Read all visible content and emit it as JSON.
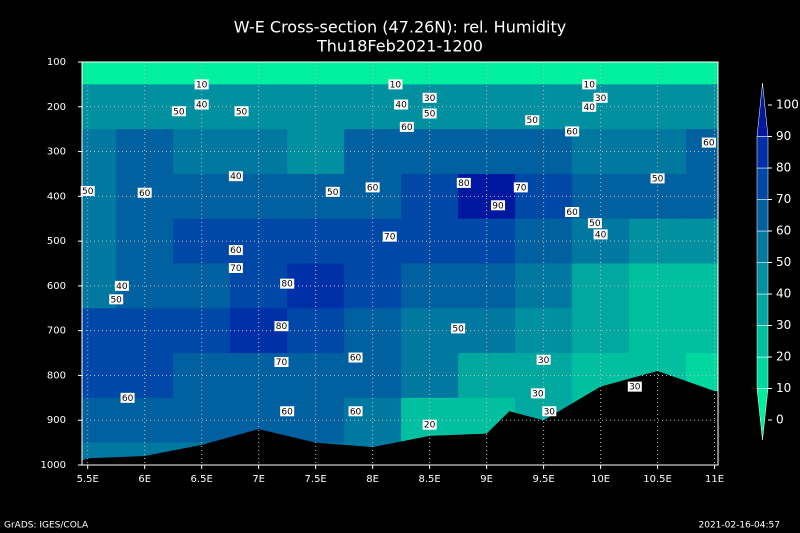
{
  "chart_data": {
    "type": "contour",
    "title": "W-E Cross-section (47.26N): rel. Humidity",
    "subtitle": "Thu18Feb2021-1200",
    "footer_left": "GrADS: IGES/COLA",
    "footer_right": "2021-02-16-04:57",
    "x": [
      5.5,
      6,
      6.5,
      7,
      7.5,
      8,
      8.5,
      9,
      9.5,
      10,
      10.5,
      11
    ],
    "levels_p": [
      100,
      200,
      300,
      400,
      500,
      600,
      700,
      800,
      900,
      1000
    ],
    "field": [
      [
        5,
        5,
        5,
        5,
        5,
        5,
        5,
        5,
        5,
        5,
        5,
        5
      ],
      [
        45,
        45,
        40,
        45,
        45,
        40,
        45,
        45,
        45,
        40,
        40,
        40
      ],
      [
        55,
        60,
        55,
        50,
        45,
        60,
        60,
        65,
        65,
        55,
        55,
        60
      ],
      [
        55,
        60,
        60,
        60,
        60,
        65,
        75,
        90,
        75,
        60,
        60,
        65
      ],
      [
        55,
        65,
        70,
        70,
        70,
        70,
        70,
        75,
        65,
        50,
        40,
        40
      ],
      [
        50,
        60,
        65,
        75,
        80,
        75,
        65,
        60,
        50,
        35,
        25,
        20
      ],
      [
        70,
        75,
        70,
        80,
        70,
        65,
        55,
        50,
        40,
        30,
        20,
        20
      ],
      [
        70,
        70,
        65,
        65,
        65,
        60,
        50,
        35,
        30,
        25,
        20,
        15
      ],
      [
        60,
        60,
        60,
        60,
        60,
        50,
        20,
        25,
        30,
        25,
        20,
        15
      ],
      [
        55,
        55,
        55,
        55,
        55,
        50,
        20,
        25,
        30,
        25,
        20,
        15
      ]
    ],
    "terrain": {
      "x": [
        5.45,
        5.5,
        6,
        6.5,
        7,
        7.5,
        8,
        8.5,
        9,
        9.2,
        9.5,
        10,
        10.5,
        11,
        11.03
      ],
      "p": [
        990,
        985,
        980,
        955,
        920,
        950,
        960,
        935,
        930,
        880,
        900,
        825,
        790,
        835,
        835
      ]
    },
    "xlim": [
      5.45,
      11.03
    ],
    "ylim": [
      1000,
      100
    ],
    "xticks": [
      {
        "value": 5.5,
        "label": "5.5E"
      },
      {
        "value": 6,
        "label": "6E"
      },
      {
        "value": 6.5,
        "label": "6.5E"
      },
      {
        "value": 7,
        "label": "7E"
      },
      {
        "value": 7.5,
        "label": "7.5E"
      },
      {
        "value": 8,
        "label": "8E"
      },
      {
        "value": 8.5,
        "label": "8.5E"
      },
      {
        "value": 9,
        "label": "9E"
      },
      {
        "value": 9.5,
        "label": "9.5E"
      },
      {
        "value": 10,
        "label": "10E"
      },
      {
        "value": 10.5,
        "label": "10.5E"
      },
      {
        "value": 11,
        "label": "11E"
      }
    ],
    "yticks": [
      100,
      200,
      300,
      400,
      500,
      600,
      700,
      800,
      900,
      1000
    ],
    "grid": true,
    "colorbar": {
      "levels": [
        0,
        10,
        20,
        30,
        40,
        50,
        60,
        70,
        80,
        90,
        100
      ],
      "colors": [
        "#00f0a0",
        "#00d8a0",
        "#00c0a0",
        "#00a8a0",
        "#0090a0",
        "#0078a0",
        "#0060a0",
        "#0048a8",
        "#0030a8",
        "#0018a0"
      ]
    },
    "contour_labels": [
      {
        "x": 6.0,
        "p": 392,
        "value": 60
      },
      {
        "x": 5.5,
        "p": 388,
        "value": 50
      },
      {
        "x": 6.8,
        "p": 355,
        "value": 40
      },
      {
        "x": 6.8,
        "p": 520,
        "value": 60
      },
      {
        "x": 6.8,
        "p": 560,
        "value": 70
      },
      {
        "x": 7.25,
        "p": 595,
        "value": 80
      },
      {
        "x": 7.2,
        "p": 690,
        "value": 80
      },
      {
        "x": 7.2,
        "p": 770,
        "value": 70
      },
      {
        "x": 7.25,
        "p": 880,
        "value": 60
      },
      {
        "x": 5.85,
        "p": 850,
        "value": 60
      },
      {
        "x": 5.8,
        "p": 600,
        "value": 40
      },
      {
        "x": 5.75,
        "p": 630,
        "value": 50
      },
      {
        "x": 6.3,
        "p": 210,
        "value": 50
      },
      {
        "x": 6.85,
        "p": 210,
        "value": 50
      },
      {
        "x": 6.5,
        "p": 150,
        "value": 10
      },
      {
        "x": 6.5,
        "p": 195,
        "value": 40
      },
      {
        "x": 7.65,
        "p": 390,
        "value": 50
      },
      {
        "x": 8.0,
        "p": 380,
        "value": 60
      },
      {
        "x": 8.15,
        "p": 490,
        "value": 70
      },
      {
        "x": 7.85,
        "p": 760,
        "value": 60
      },
      {
        "x": 7.85,
        "p": 880,
        "value": 60
      },
      {
        "x": 8.2,
        "p": 150,
        "value": 10
      },
      {
        "x": 8.25,
        "p": 195,
        "value": 40
      },
      {
        "x": 8.3,
        "p": 245,
        "value": 60
      },
      {
        "x": 8.5,
        "p": 215,
        "value": 50
      },
      {
        "x": 8.5,
        "p": 180,
        "value": 30
      },
      {
        "x": 8.8,
        "p": 370,
        "value": 80
      },
      {
        "x": 9.1,
        "p": 420,
        "value": 90
      },
      {
        "x": 9.3,
        "p": 380,
        "value": 70
      },
      {
        "x": 8.75,
        "p": 695,
        "value": 50
      },
      {
        "x": 8.5,
        "p": 910,
        "value": 20
      },
      {
        "x": 9.4,
        "p": 230,
        "value": 50
      },
      {
        "x": 9.75,
        "p": 255,
        "value": 60
      },
      {
        "x": 9.75,
        "p": 435,
        "value": 60
      },
      {
        "x": 9.95,
        "p": 460,
        "value": 50
      },
      {
        "x": 10.0,
        "p": 485,
        "value": 40
      },
      {
        "x": 9.5,
        "p": 765,
        "value": 30
      },
      {
        "x": 9.45,
        "p": 840,
        "value": 30
      },
      {
        "x": 9.55,
        "p": 880,
        "value": 30
      },
      {
        "x": 10.3,
        "p": 825,
        "value": 30
      },
      {
        "x": 9.9,
        "p": 150,
        "value": 10
      },
      {
        "x": 10.0,
        "p": 180,
        "value": 30
      },
      {
        "x": 9.9,
        "p": 200,
        "value": 40
      },
      {
        "x": 10.5,
        "p": 360,
        "value": 50
      },
      {
        "x": 10.95,
        "p": 280,
        "value": 60
      }
    ]
  }
}
